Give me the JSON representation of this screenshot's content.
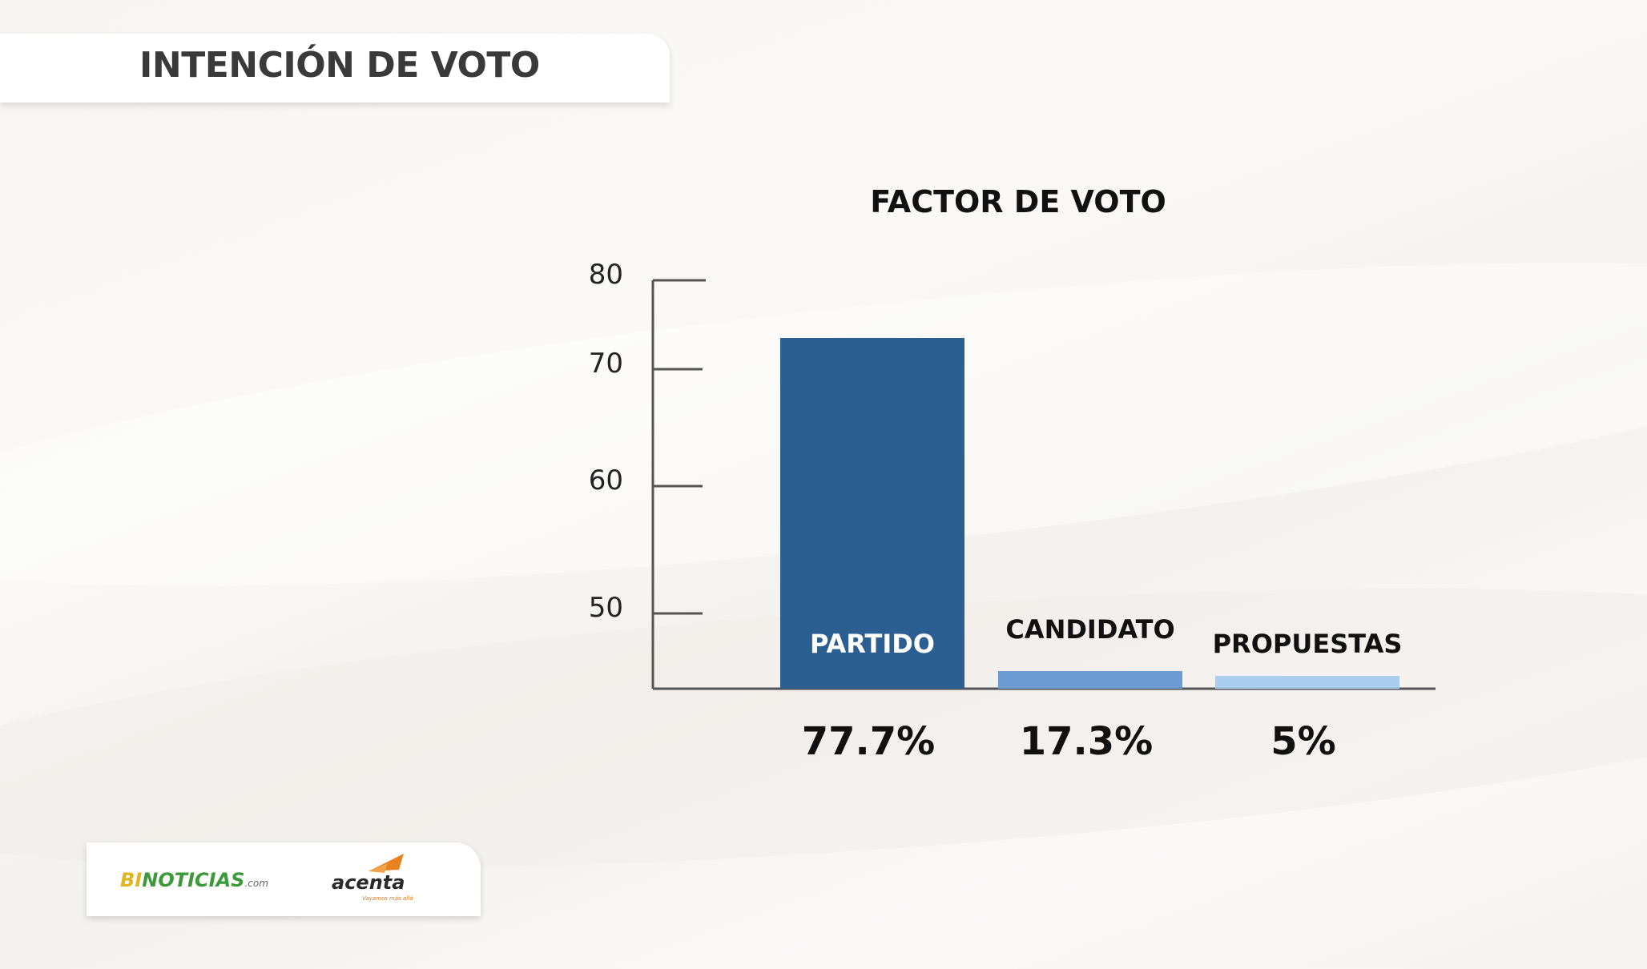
{
  "header": {
    "title": "INTENCIÓN DE VOTO"
  },
  "colors": {
    "bar_partido": "#2b5f92",
    "bar_candidato": "#6b9bd0",
    "bar_propuestas": "#a9cdef",
    "axis": "#555555",
    "text_dark": "#111111",
    "text_light": "#ffffff"
  },
  "chart_data": {
    "type": "bar",
    "title": "FACTOR DE VOTO",
    "categories": [
      "PARTIDO",
      "CANDIDATO",
      "PROPUESTAS"
    ],
    "values": [
      77.7,
      17.3,
      5
    ],
    "value_labels": [
      "77.7%",
      "17.3%",
      "5%"
    ],
    "ytick_labels": [
      "80",
      "70",
      "60",
      "50"
    ],
    "yticks": [
      80,
      70,
      60,
      50
    ],
    "xlabel": "",
    "ylabel": "",
    "grid": false,
    "legend": "none"
  },
  "logos": {
    "binoticias_bi": "BI",
    "binoticias_rest": "NOTICIAS",
    "binoticias_com": ".com",
    "acenta": "acenta",
    "acenta_tagline": "Vayamos más allá"
  }
}
